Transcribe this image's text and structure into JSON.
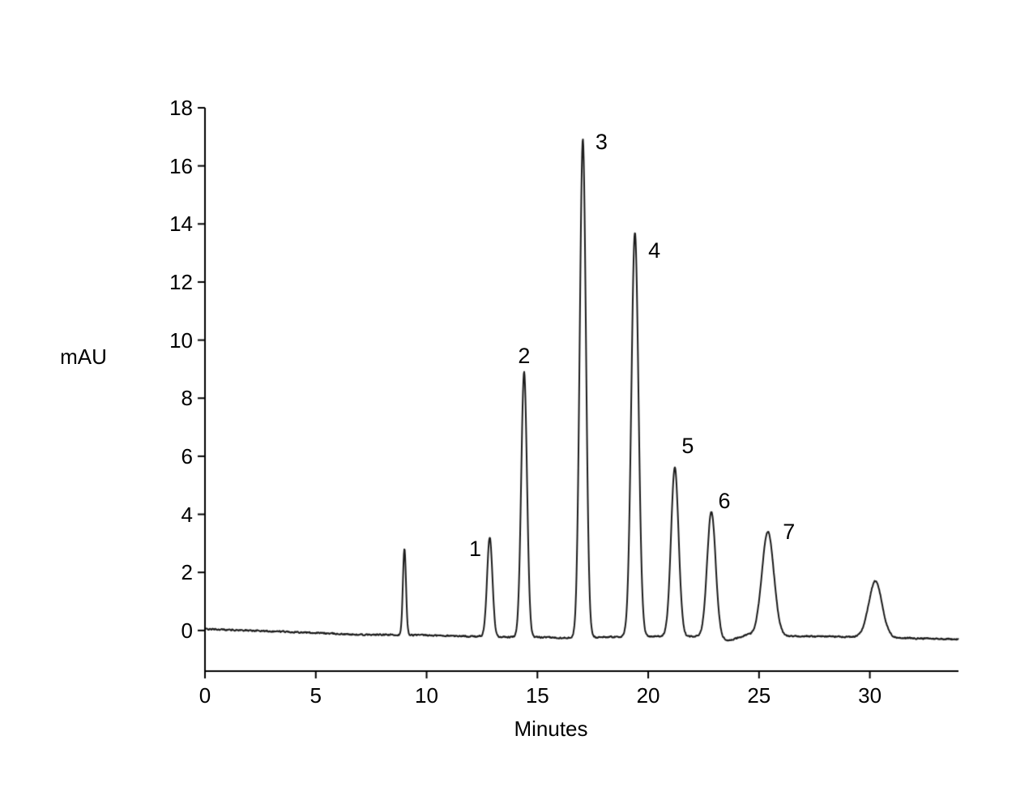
{
  "chart_data": {
    "type": "line",
    "title": "",
    "xlabel": "Minutes",
    "ylabel": "mAU",
    "xlim": [
      0,
      34
    ],
    "ylim": [
      -1.4,
      18
    ],
    "x_ticks": [
      0,
      5,
      10,
      15,
      20,
      25,
      30
    ],
    "y_ticks": [
      0,
      2,
      4,
      6,
      8,
      10,
      12,
      14,
      16,
      18
    ],
    "grid": false,
    "legend": false,
    "background": "#ffffff",
    "line_color": "#1c1c1c",
    "axis_color": "#000000",
    "noise_amplitude": 0.04,
    "baseline_points": [
      [
        0,
        0.05
      ],
      [
        2,
        0.0
      ],
      [
        4,
        -0.05
      ],
      [
        7,
        -0.15
      ],
      [
        9,
        -0.15
      ],
      [
        12,
        -0.2
      ],
      [
        16,
        -0.25
      ],
      [
        20,
        -0.2
      ],
      [
        23,
        -0.2
      ],
      [
        23.6,
        -0.35
      ],
      [
        24.5,
        -0.15
      ],
      [
        26,
        -0.2
      ],
      [
        28,
        -0.2
      ],
      [
        31,
        -0.25
      ],
      [
        34,
        -0.3
      ]
    ],
    "peaks": [
      {
        "label": "",
        "retention_time": 9.0,
        "height_mau": 2.8,
        "sigma": 0.07,
        "label_offset": [
          0,
          0
        ]
      },
      {
        "label": "1",
        "retention_time": 12.85,
        "height_mau": 3.2,
        "sigma": 0.12,
        "label_offset": [
          -18,
          14
        ]
      },
      {
        "label": "2",
        "retention_time": 14.4,
        "height_mau": 8.9,
        "sigma": 0.13,
        "label_offset": [
          0,
          -20
        ]
      },
      {
        "label": "3",
        "retention_time": 17.05,
        "height_mau": 16.9,
        "sigma": 0.14,
        "label_offset": [
          23,
          3
        ]
      },
      {
        "label": "4",
        "retention_time": 19.4,
        "height_mau": 13.7,
        "sigma": 0.16,
        "label_offset": [
          24,
          22
        ]
      },
      {
        "label": "5",
        "retention_time": 21.2,
        "height_mau": 5.6,
        "sigma": 0.17,
        "label_offset": [
          16,
          -27
        ]
      },
      {
        "label": "6",
        "retention_time": 22.85,
        "height_mau": 4.1,
        "sigma": 0.19,
        "label_offset": [
          16,
          -13
        ]
      },
      {
        "label": "7",
        "retention_time": 25.4,
        "height_mau": 3.4,
        "sigma": 0.27,
        "label_offset": [
          26,
          0
        ]
      },
      {
        "label": "",
        "retention_time": 30.25,
        "height_mau": 1.7,
        "sigma": 0.3,
        "label_offset": [
          0,
          0
        ]
      }
    ]
  }
}
